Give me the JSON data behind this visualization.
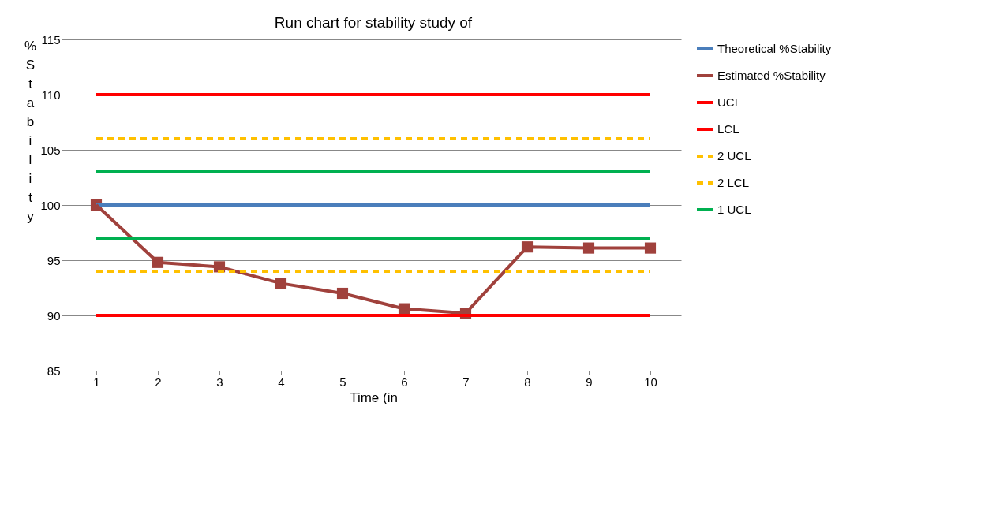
{
  "chart_data": {
    "type": "line",
    "title": "Run chart for stability study of",
    "xlabel": "Time  (in",
    "ylabel": "%Stability",
    "categories": [
      "1",
      "2",
      "3",
      "4",
      "5",
      "6",
      "7",
      "8",
      "9",
      "10"
    ],
    "ylim": [
      85,
      115
    ],
    "yticks": [
      85,
      90,
      95,
      100,
      105,
      110,
      115
    ],
    "grid": "y",
    "legend": "right",
    "series": [
      {
        "name": "Theoretical %Stability",
        "color": "#4a7ebb",
        "values": [
          100,
          100,
          100,
          100,
          100,
          100,
          100,
          100,
          100,
          100
        ]
      },
      {
        "name": "Estimated %Stability",
        "color": "#a0413c",
        "marker": "square",
        "values": [
          100,
          94.8,
          94.4,
          92.9,
          92.0,
          90.6,
          90.2,
          96.2,
          96.1,
          96.1
        ]
      },
      {
        "name": "UCL",
        "color": "#ff0000",
        "values": [
          110,
          110,
          110,
          110,
          110,
          110,
          110,
          110,
          110,
          110
        ]
      },
      {
        "name": "LCL",
        "color": "#ff0000",
        "values": [
          90,
          90,
          90,
          90,
          90,
          90,
          90,
          90,
          90,
          90
        ]
      },
      {
        "name": "2 UCL",
        "color": "#ffc000",
        "line_style": "dashed",
        "values": [
          106,
          106,
          106,
          106,
          106,
          106,
          106,
          106,
          106,
          106
        ]
      },
      {
        "name": "2 LCL",
        "color": "#ffc000",
        "line_style": "dashed",
        "values": [
          94,
          94,
          94,
          94,
          94,
          94,
          94,
          94,
          94,
          94
        ]
      },
      {
        "name": "1 UCL",
        "color": "#00b050",
        "values": [
          103,
          103,
          103,
          103,
          103,
          103,
          103,
          103,
          103,
          103
        ]
      },
      {
        "color": "#00b050",
        "values": [
          97,
          97,
          97,
          97,
          97,
          97,
          97,
          97,
          97,
          97
        ]
      }
    ]
  }
}
